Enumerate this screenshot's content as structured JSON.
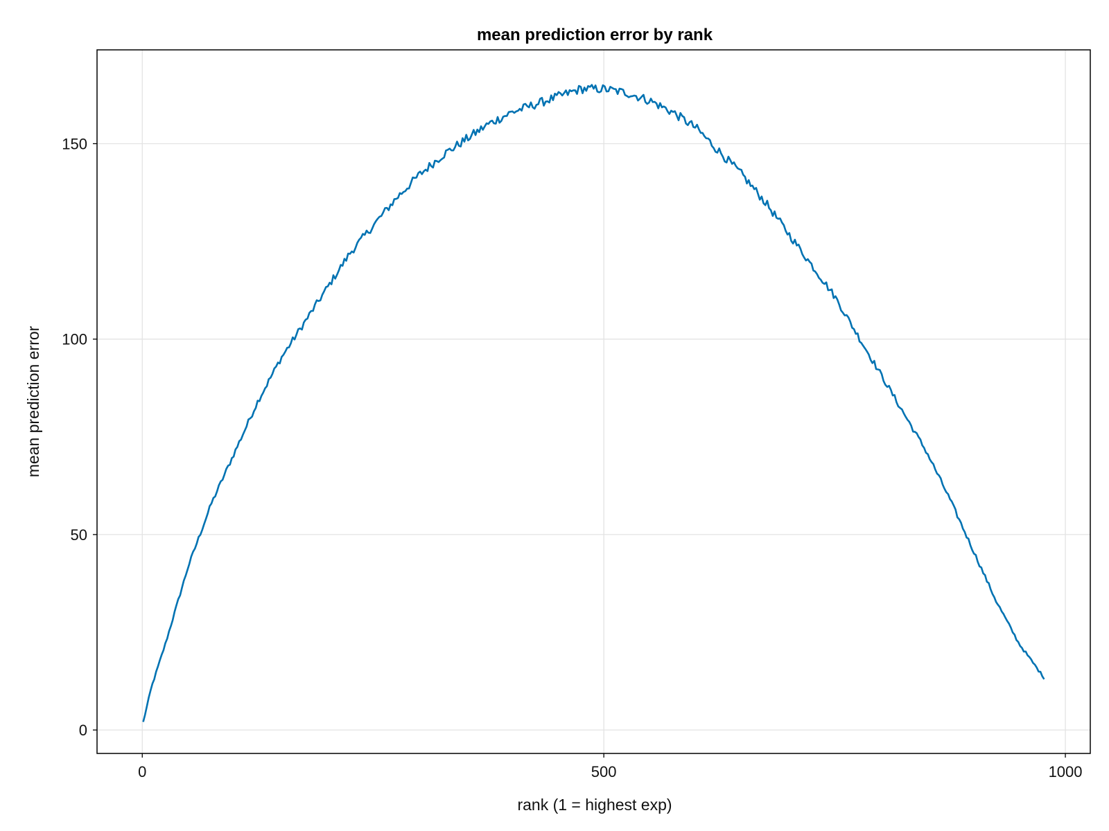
{
  "chart_data": {
    "type": "line",
    "title": "mean prediction error by rank",
    "xlabel": "rank (1 = highest exp)",
    "ylabel": "mean prediction error",
    "xlim": [
      -49,
      1027
    ],
    "ylim": [
      -6,
      174
    ],
    "xticks": [
      0,
      500,
      1000
    ],
    "xtick_labels": [
      "0",
      "500",
      "1000"
    ],
    "yticks": [
      0,
      50,
      100,
      150
    ],
    "ytick_labels": [
      "0",
      "50",
      "100",
      "150"
    ],
    "grid": true,
    "legend": "none",
    "series": [
      {
        "color": "#0072b2",
        "x": [
          1,
          10,
          25,
          50,
          75,
          100,
          125,
          150,
          175,
          200,
          225,
          250,
          275,
          300,
          325,
          350,
          375,
          400,
          425,
          450,
          475,
          500,
          525,
          550,
          575,
          600,
          625,
          650,
          675,
          700,
          725,
          750,
          775,
          800,
          825,
          850,
          875,
          900,
          925,
          950,
          978
        ],
        "y": [
          2,
          11,
          22,
          42,
          58,
          71,
          84,
          95,
          104,
          113,
          122,
          129,
          136,
          142,
          147,
          151,
          155,
          158,
          160,
          162,
          164,
          164,
          163,
          161,
          158,
          154,
          148,
          142,
          135,
          127,
          119,
          111,
          101,
          91,
          81,
          71,
          59,
          46,
          33,
          22,
          13
        ]
      }
    ]
  }
}
